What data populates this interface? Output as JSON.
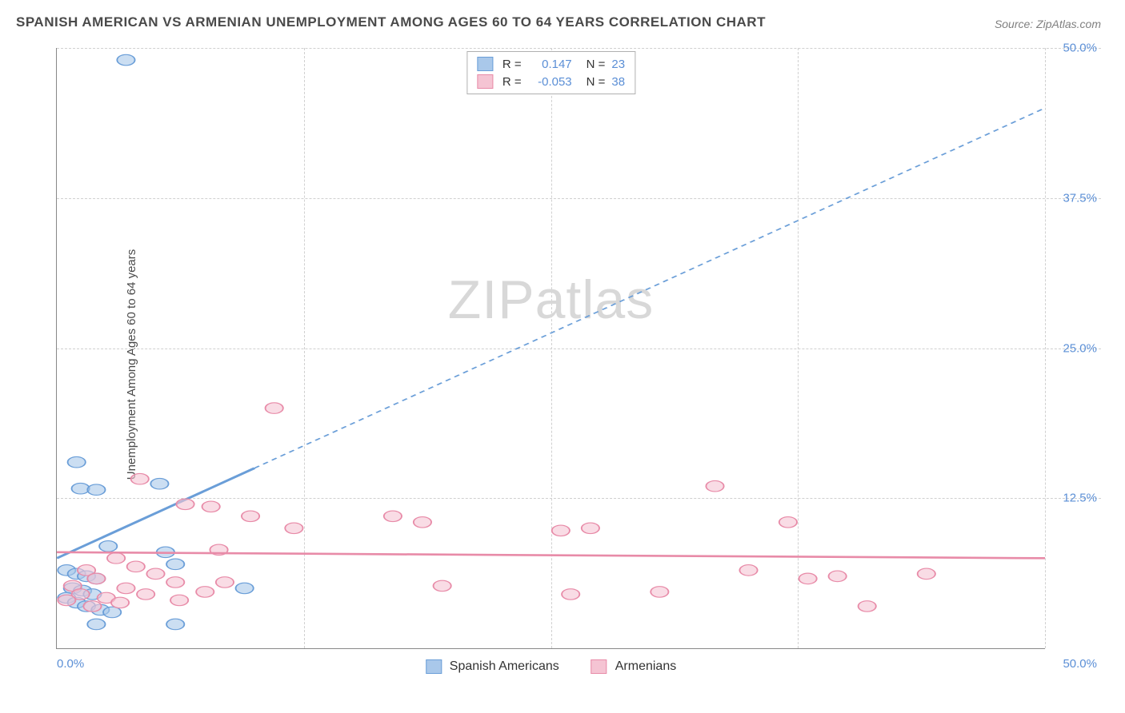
{
  "title": "SPANISH AMERICAN VS ARMENIAN UNEMPLOYMENT AMONG AGES 60 TO 64 YEARS CORRELATION CHART",
  "source": "Source: ZipAtlas.com",
  "y_axis_label": "Unemployment Among Ages 60 to 64 years",
  "watermark_zip": "ZIP",
  "watermark_atlas": "atlas",
  "chart": {
    "type": "scatter",
    "xlim": [
      0,
      50
    ],
    "ylim": [
      0,
      50
    ],
    "x_origin_label": "0.0%",
    "x_max_label": "50.0%",
    "y_ticks": [
      {
        "value": 12.5,
        "label": "12.5%"
      },
      {
        "value": 25.0,
        "label": "25.0%"
      },
      {
        "value": 37.5,
        "label": "37.5%"
      },
      {
        "value": 50.0,
        "label": "50.0%"
      }
    ],
    "x_gridlines": [
      12.5,
      25.0,
      37.5,
      50.0
    ],
    "grid_color": "#d0d0d0",
    "background_color": "#ffffff",
    "marker_radius": 9,
    "marker_stroke_width": 1.5,
    "marker_fill_opacity": 0.25,
    "series": [
      {
        "name": "Spanish Americans",
        "color_stroke": "#6a9ed8",
        "color_fill": "#a9c8ea",
        "r_value": "0.147",
        "n_value": "23",
        "trend": {
          "x1": 0,
          "y1": 7.5,
          "x2_solid": 10,
          "y2_solid": 15.0,
          "x2_dash": 50,
          "y2_dash": 45.0,
          "stroke_width": 2.5,
          "dash": "6,5"
        },
        "points": [
          [
            3.5,
            49.0
          ],
          [
            1.0,
            15.5
          ],
          [
            1.2,
            13.3
          ],
          [
            2.0,
            13.2
          ],
          [
            5.2,
            13.7
          ],
          [
            2.6,
            8.5
          ],
          [
            0.5,
            6.5
          ],
          [
            1.0,
            6.2
          ],
          [
            1.5,
            6.0
          ],
          [
            2.0,
            5.8
          ],
          [
            0.8,
            5.0
          ],
          [
            1.3,
            4.8
          ],
          [
            1.8,
            4.5
          ],
          [
            0.5,
            4.2
          ],
          [
            1.0,
            3.8
          ],
          [
            1.5,
            3.5
          ],
          [
            2.2,
            3.2
          ],
          [
            2.8,
            3.0
          ],
          [
            5.5,
            8.0
          ],
          [
            6.0,
            7.0
          ],
          [
            9.5,
            5.0
          ],
          [
            2.0,
            2.0
          ],
          [
            6.0,
            2.0
          ]
        ]
      },
      {
        "name": "Armenians",
        "color_stroke": "#e88ba8",
        "color_fill": "#f5c4d3",
        "r_value": "-0.053",
        "n_value": "38",
        "trend": {
          "x1": 0,
          "y1": 8.0,
          "x2_solid": 50,
          "y2_solid": 7.5,
          "x2_dash": 50,
          "y2_dash": 7.5,
          "stroke_width": 2.5,
          "dash": ""
        },
        "points": [
          [
            11.0,
            20.0
          ],
          [
            4.2,
            14.1
          ],
          [
            6.5,
            12.0
          ],
          [
            7.8,
            11.8
          ],
          [
            9.8,
            11.0
          ],
          [
            8.2,
            8.2
          ],
          [
            12.0,
            10.0
          ],
          [
            17.0,
            11.0
          ],
          [
            18.5,
            10.5
          ],
          [
            27.0,
            10.0
          ],
          [
            37.0,
            10.5
          ],
          [
            44.0,
            6.2
          ],
          [
            33.3,
            13.5
          ],
          [
            38.0,
            5.8
          ],
          [
            30.5,
            4.7
          ],
          [
            26.0,
            4.5
          ],
          [
            39.5,
            6.0
          ],
          [
            41.0,
            3.5
          ],
          [
            3.0,
            7.5
          ],
          [
            4.0,
            6.8
          ],
          [
            5.0,
            6.2
          ],
          [
            6.0,
            5.5
          ],
          [
            3.5,
            5.0
          ],
          [
            4.5,
            4.5
          ],
          [
            7.5,
            4.7
          ],
          [
            6.2,
            4.0
          ],
          [
            8.5,
            5.5
          ],
          [
            1.5,
            6.5
          ],
          [
            2.0,
            5.8
          ],
          [
            0.8,
            5.2
          ],
          [
            1.2,
            4.5
          ],
          [
            2.5,
            4.2
          ],
          [
            3.2,
            3.8
          ],
          [
            1.8,
            3.5
          ],
          [
            0.5,
            4.0
          ],
          [
            19.5,
            5.2
          ],
          [
            25.5,
            9.8
          ],
          [
            35.0,
            6.5
          ]
        ]
      }
    ]
  },
  "legend_top": {
    "r_label": "R =",
    "n_label": "N ="
  }
}
